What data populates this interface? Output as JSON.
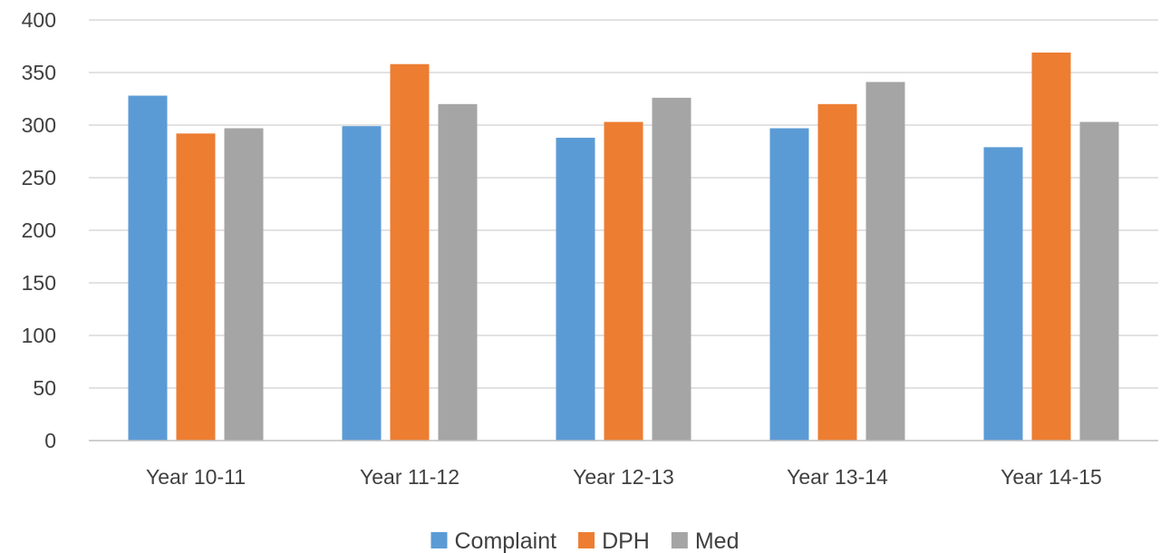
{
  "chart_data": {
    "type": "bar",
    "categories": [
      "Year 10-11",
      "Year 11-12",
      "Year 12-13",
      "Year 13-14",
      "Year 14-15"
    ],
    "series": [
      {
        "name": "Complaint",
        "color": "#5b9bd5",
        "values": [
          328,
          299,
          288,
          297,
          279
        ]
      },
      {
        "name": "DPH",
        "color": "#ed7d31",
        "values": [
          292,
          358,
          303,
          320,
          369
        ]
      },
      {
        "name": "Med",
        "color": "#a5a5a5",
        "values": [
          297,
          320,
          326,
          341,
          303
        ]
      }
    ],
    "yticks": [
      "0",
      "50",
      "100",
      "150",
      "200",
      "250",
      "300",
      "350",
      "400"
    ],
    "ylim": [
      0,
      400
    ],
    "grid": true,
    "legend_position": "bottom"
  }
}
